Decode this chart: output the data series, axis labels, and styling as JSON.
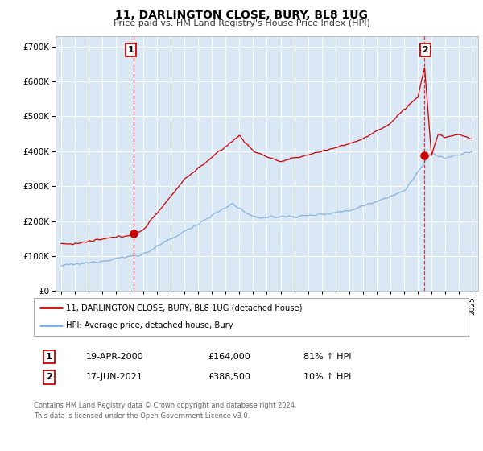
{
  "title": "11, DARLINGTON CLOSE, BURY, BL8 1UG",
  "subtitle": "Price paid vs. HM Land Registry's House Price Index (HPI)",
  "red_label": "11, DARLINGTON CLOSE, BURY, BL8 1UG (detached house)",
  "blue_label": "HPI: Average price, detached house, Bury",
  "transaction1_label": "19-APR-2000",
  "transaction1_price": "£164,000",
  "transaction1_hpi": "81% ↑ HPI",
  "transaction2_label": "17-JUN-2021",
  "transaction2_price": "£388,500",
  "transaction2_hpi": "10% ↑ HPI",
  "footer1": "Contains HM Land Registry data © Crown copyright and database right 2024.",
  "footer2": "This data is licensed under the Open Government Licence v3.0.",
  "xlim": [
    1994.6,
    2025.4
  ],
  "ylim": [
    0,
    730000
  ],
  "bg_color": "#dae8f5",
  "red_color": "#cc0000",
  "blue_color": "#7aaedc",
  "transaction1_x": 2000.29,
  "transaction1_y": 164000,
  "transaction2_x": 2021.45,
  "transaction2_y": 388500
}
